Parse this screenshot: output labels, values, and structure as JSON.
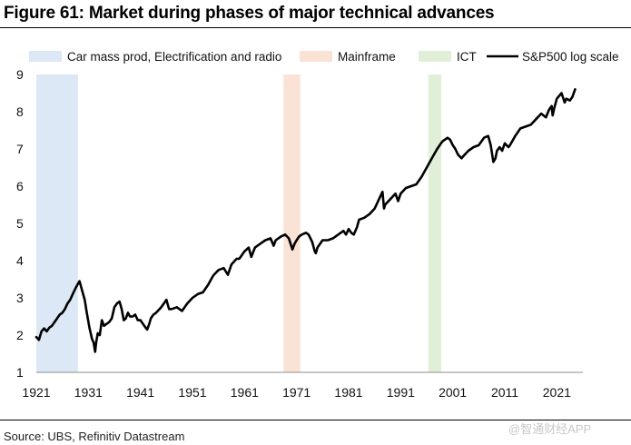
{
  "figure_title": "Figure 61: Market during phases of major technical advances",
  "source": "Source: UBS, Refinitiv Datastream",
  "watermark": "@智通财经APP",
  "chart_data": {
    "type": "line",
    "title": "Figure 61: Market during phases of major technical advances",
    "xlabel": "",
    "ylabel": "",
    "xlim": [
      1921,
      2026
    ],
    "ylim": [
      1,
      9
    ],
    "x_ticks": [
      1921,
      1931,
      1941,
      1951,
      1961,
      1971,
      1981,
      1991,
      2001,
      2011,
      2021
    ],
    "y_ticks": [
      1,
      2,
      3,
      4,
      5,
      6,
      7,
      8,
      9
    ],
    "grid": false,
    "legend_position": "top",
    "bands": [
      {
        "name": "Car mass prod, Electrification and radio",
        "start": 1921,
        "end": 1929,
        "color": "#dce8f5"
      },
      {
        "name": "Mainframe",
        "start": 1968.5,
        "end": 1971.7,
        "color": "#fae2d4"
      },
      {
        "name": "ICT",
        "start": 1996.3,
        "end": 1998.8,
        "color": "#e1efd9"
      }
    ],
    "series": [
      {
        "name": "S&P500 log scale",
        "color": "#000000",
        "x": [
          1921.0,
          1921.5,
          1922.0,
          1922.5,
          1923.0,
          1923.5,
          1924.0,
          1924.5,
          1925.0,
          1925.5,
          1926.0,
          1926.5,
          1927.0,
          1927.5,
          1928.0,
          1928.5,
          1929.0,
          1929.3,
          1929.6,
          1929.9,
          1930.3,
          1930.7,
          1931.2,
          1931.7,
          1932.0,
          1932.3,
          1932.5,
          1932.8,
          1933.2,
          1933.6,
          1934.0,
          1934.5,
          1935.0,
          1935.5,
          1936.0,
          1936.5,
          1937.0,
          1937.4,
          1937.8,
          1938.2,
          1938.6,
          1939.0,
          1939.5,
          1940.0,
          1940.5,
          1941.0,
          1941.5,
          1942.0,
          1942.3,
          1942.7,
          1943.0,
          1943.5,
          1944.0,
          1945.0,
          1945.5,
          1946.0,
          1946.5,
          1947.0,
          1948.0,
          1949.0,
          1949.5,
          1950.0,
          1951.0,
          1952.0,
          1953.0,
          1954.0,
          1955.0,
          1956.0,
          1957.0,
          1957.8,
          1958.5,
          1959.5,
          1960.0,
          1961.0,
          1961.8,
          1962.3,
          1963.0,
          1964.0,
          1965.0,
          1966.0,
          1966.6,
          1967.0,
          1968.0,
          1968.8,
          1969.5,
          1970.2,
          1970.6,
          1971.0,
          1971.5,
          1972.0,
          1972.8,
          1973.3,
          1974.0,
          1974.5,
          1974.7,
          1975.0,
          1975.5,
          1976.0,
          1977.0,
          1978.0,
          1979.0,
          1980.0,
          1980.5,
          1981.0,
          1981.5,
          1982.0,
          1982.6,
          1983.0,
          1984.0,
          1985.0,
          1986.0,
          1987.0,
          1987.5,
          1987.8,
          1988.0,
          1989.0,
          1990.0,
          1990.5,
          1991.0,
          1992.0,
          1993.0,
          1994.0,
          1995.0,
          1996.0,
          1997.0,
          1998.0,
          1999.0,
          2000.0,
          2000.5,
          2001.0,
          2001.5,
          2002.0,
          2002.7,
          2003.0,
          2004.0,
          2005.0,
          2006.0,
          2007.0,
          2007.8,
          2008.3,
          2008.8,
          2009.2,
          2009.5,
          2010.0,
          2010.5,
          2011.0,
          2011.7,
          2012.0,
          2013.0,
          2014.0,
          2015.0,
          2016.0,
          2017.0,
          2018.0,
          2018.9,
          2019.5,
          2020.0,
          2020.2,
          2020.5,
          2021.0,
          2021.9,
          2022.5,
          2022.8,
          2023.5,
          2024.0,
          2024.5
        ],
        "values": [
          1.95,
          1.87,
          2.1,
          2.18,
          2.1,
          2.2,
          2.25,
          2.35,
          2.45,
          2.55,
          2.6,
          2.7,
          2.85,
          2.95,
          3.1,
          3.25,
          3.38,
          3.45,
          3.3,
          3.15,
          2.95,
          2.6,
          2.2,
          1.9,
          1.8,
          1.55,
          1.8,
          2.05,
          2.0,
          2.4,
          2.25,
          2.3,
          2.35,
          2.45,
          2.75,
          2.85,
          2.9,
          2.7,
          2.4,
          2.45,
          2.6,
          2.5,
          2.5,
          2.55,
          2.4,
          2.4,
          2.3,
          2.2,
          2.15,
          2.3,
          2.45,
          2.55,
          2.6,
          2.75,
          2.85,
          2.95,
          2.7,
          2.7,
          2.75,
          2.65,
          2.75,
          2.85,
          3.0,
          3.1,
          3.15,
          3.35,
          3.6,
          3.75,
          3.8,
          3.62,
          3.9,
          4.05,
          4.05,
          4.25,
          4.35,
          4.1,
          4.35,
          4.45,
          4.55,
          4.6,
          4.4,
          4.55,
          4.65,
          4.7,
          4.6,
          4.3,
          4.45,
          4.55,
          4.65,
          4.7,
          4.75,
          4.7,
          4.5,
          4.25,
          4.2,
          4.35,
          4.45,
          4.55,
          4.55,
          4.6,
          4.7,
          4.8,
          4.7,
          4.85,
          4.75,
          4.7,
          4.9,
          5.1,
          5.15,
          5.25,
          5.4,
          5.7,
          5.85,
          5.4,
          5.5,
          5.65,
          5.8,
          5.6,
          5.8,
          5.95,
          6.0,
          6.05,
          6.25,
          6.5,
          6.75,
          7.0,
          7.2,
          7.3,
          7.25,
          7.1,
          7.0,
          6.85,
          6.75,
          6.8,
          6.95,
          7.05,
          7.1,
          7.3,
          7.35,
          7.1,
          6.65,
          6.75,
          6.95,
          7.05,
          6.95,
          7.15,
          7.05,
          7.1,
          7.35,
          7.55,
          7.6,
          7.65,
          7.8,
          7.95,
          7.85,
          8.05,
          8.15,
          7.9,
          8.1,
          8.35,
          8.5,
          8.25,
          8.35,
          8.3,
          8.4,
          8.6
        ]
      }
    ]
  }
}
